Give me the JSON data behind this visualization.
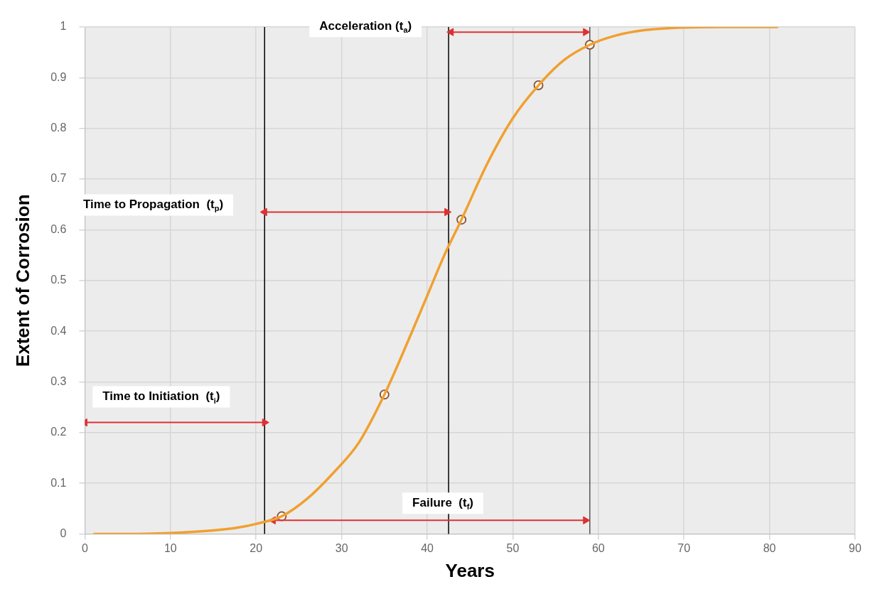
{
  "chart_data": {
    "type": "line",
    "xlabel": "Years",
    "ylabel": "Extent of Corrosion",
    "xlim": [
      0,
      90
    ],
    "xticks": [
      0,
      10,
      20,
      30,
      40,
      50,
      60,
      70,
      80,
      90
    ],
    "ylim": [
      0,
      1
    ],
    "yticks": [
      0,
      0.1,
      0.2,
      0.3,
      0.4,
      0.5,
      0.6,
      0.7,
      0.8,
      0.9,
      1
    ],
    "grid": true,
    "series": [
      {
        "color": "#f0a030",
        "marker": "none",
        "x": [
          1,
          5,
          10,
          15,
          18,
          20,
          23,
          26,
          29,
          32,
          35,
          38,
          40,
          42,
          44,
          47,
          50,
          53,
          56,
          59,
          62,
          65,
          70,
          75,
          81
        ],
        "values": [
          0,
          0,
          0.002,
          0.007,
          0.013,
          0.02,
          0.035,
          0.07,
          0.12,
          0.18,
          0.275,
          0.39,
          0.47,
          0.55,
          0.62,
          0.73,
          0.82,
          0.885,
          0.935,
          0.965,
          0.983,
          0.993,
          0.999,
          1,
          1
        ]
      },
      {
        "type": "line",
        "color": "#e03030",
        "marker": "triangle",
        "x": [
          0,
          21
        ],
        "values": [
          0.22,
          0.22
        ]
      },
      {
        "type": "line",
        "color": "#e03030",
        "marker": "triangle",
        "x": [
          21,
          42.3
        ],
        "values": [
          0.635,
          0.635
        ]
      },
      {
        "type": "line",
        "color": "#e03030",
        "marker": "triangle",
        "x": [
          42.8,
          58.5
        ],
        "values": [
          0.99,
          0.99
        ]
      },
      {
        "type": "line",
        "color": "#e03030",
        "marker": "triangle",
        "x": [
          22,
          58.5
        ],
        "values": [
          0.027,
          0.027
        ]
      },
      {
        "type": "scatter",
        "color": "#8b5a3c",
        "marker": "circle",
        "x": [
          23,
          35,
          44,
          53,
          59
        ],
        "values": [
          0.035,
          0.275,
          0.62,
          0.885,
          0.965
        ]
      }
    ],
    "ref_lines": [
      {
        "axis": "x",
        "value": 21,
        "color": "#000000"
      },
      {
        "axis": "x",
        "value": 42.5,
        "color": "#000000"
      },
      {
        "axis": "x",
        "value": 59,
        "color": "#555555"
      }
    ],
    "annotations": [
      "Time to Initiation  (t$_{i}$)",
      "Time to Propagation  (t$_{p}$)",
      "Acceleration (t$_{a}$)",
      "Failure  (t$_{f}$)"
    ]
  }
}
